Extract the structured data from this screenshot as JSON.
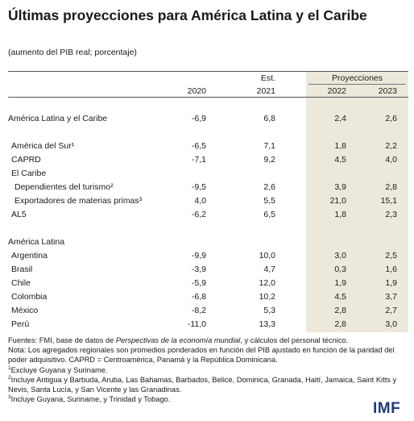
{
  "title": "Últimas proyecciones para América Latina y el Caribe",
  "subtitle": "(aumento del PIB real; porcentaje)",
  "header": {
    "est_label": "Est.",
    "proj_label": "Proyecciones",
    "years": [
      "2020",
      "2021",
      "2022",
      "2023"
    ]
  },
  "rows": [
    {
      "label": "América Latina y el Caribe",
      "values": [
        "-6,9",
        "6,8",
        "2,4",
        "2,6"
      ]
    },
    {
      "label": "América del Sur¹",
      "values": [
        "-6,5",
        "7,1",
        "1,8",
        "2,2"
      ]
    },
    {
      "label": "CAPRD",
      "values": [
        "-7,1",
        "9,2",
        "4,5",
        "4,0"
      ]
    },
    {
      "label": "El Caribe",
      "values": [
        "",
        "",
        "",
        ""
      ]
    },
    {
      "label": "Dependientes del turismo²",
      "values": [
        "-9,5",
        "2,6",
        "3,9",
        "2,8"
      ]
    },
    {
      "label": "Exportadores de materias primas³",
      "values": [
        "4,0",
        "5,5",
        "21,0",
        "15,1"
      ]
    },
    {
      "label": "AL5",
      "values": [
        "-6,2",
        "6,5",
        "1,8",
        "2,3"
      ]
    },
    {
      "label": "América Latina",
      "values": [
        "",
        "",
        "",
        ""
      ]
    },
    {
      "label": "Argentina",
      "values": [
        "-9,9",
        "10,0",
        "3,0",
        "2,5"
      ]
    },
    {
      "label": "Brasil",
      "values": [
        "-3,9",
        "4,7",
        "0,3",
        "1,6"
      ]
    },
    {
      "label": "Chile",
      "values": [
        "-5,9",
        "12,0",
        "1,9",
        "1,9"
      ]
    },
    {
      "label": "Colombia",
      "values": [
        "-6,8",
        "10,2",
        "4,5",
        "3,7"
      ]
    },
    {
      "label": "México",
      "values": [
        "-8,2",
        "5,3",
        "2,8",
        "2,7"
      ]
    },
    {
      "label": "Perú",
      "values": [
        "-11,0",
        "13,3",
        "2,8",
        "3,0"
      ]
    }
  ],
  "notes": {
    "sources_prefix": "Fuentes: FMI, base de datos de ",
    "sources_italic": "Perspectivas de la economía mundial",
    "sources_suffix": ", y cálculos del personal técnico.",
    "note": "Nota: Los agregados regionales son promedios ponderados en función del PIB ajustado en función de la paridad del poder adquisitivo. CAPRD = Centroamérica, Panamá y la República Dominicana.",
    "fn1_mark": "1",
    "fn1": "Excluye Guyana y Suriname.",
    "fn2_mark": "2",
    "fn2": "Incluye Antigua y Barbuda, Aruba, Las Bahamas, Barbados, Belice, Dominica, Granada, Haití, Jamaica, Saint Kitts y Nevis, Santa Lucía, y San Vicente y las Granadinas.",
    "fn3_mark": "3",
    "fn3": "Incluye Guyana, Suriname, y Trinidad y Tobago."
  },
  "logo": "IMF",
  "colors": {
    "projection_shade": "#ece9dc",
    "logo_blue": "#1f3d7a"
  }
}
